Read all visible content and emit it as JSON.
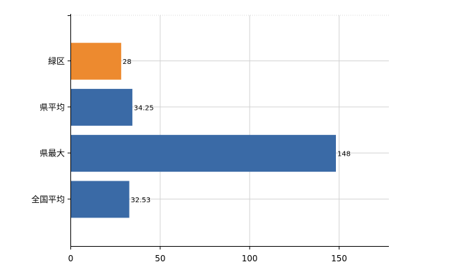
{
  "chart_data": {
    "type": "bar",
    "orientation": "horizontal",
    "title": "",
    "xlabel": "",
    "ylabel": "",
    "categories": [
      "緑区",
      "県平均",
      "県最大",
      "全国平均"
    ],
    "values": [
      28,
      34.25,
      148,
      32.53
    ],
    "value_labels": [
      "28",
      "34.25",
      "148",
      "32.53"
    ],
    "bar_colors": [
      "#ed8a2f",
      "#3a6aa6",
      "#3a6aa6",
      "#3a6aa6"
    ],
    "xlim": [
      0,
      178
    ],
    "x_ticks": [
      0,
      50,
      100,
      150
    ],
    "x_tick_labels": [
      "0",
      "50",
      "100",
      "150"
    ],
    "grid": true,
    "legend": "none"
  }
}
